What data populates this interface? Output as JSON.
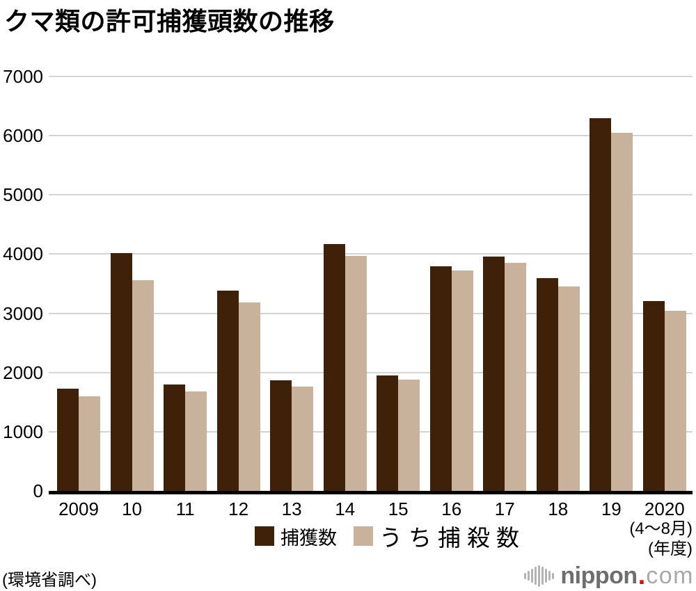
{
  "chart_data": {
    "type": "bar",
    "title": "クマ類の許可捕獲頭数の推移",
    "categories": [
      "2009",
      "10",
      "11",
      "12",
      "13",
      "14",
      "15",
      "16",
      "17",
      "18",
      "19",
      "2020"
    ],
    "series": [
      {
        "name": "捕獲数",
        "color": "#3e2108",
        "values": [
          1728,
          4020,
          1803,
          3379,
          1866,
          4167,
          1954,
          3791,
          3959,
          3598,
          6297,
          3212
        ]
      },
      {
        "name": "うち捕殺数",
        "color": "#c8b29b",
        "values": [
          1602,
          3562,
          1676,
          3188,
          1766,
          3969,
          1876,
          3721,
          3852,
          3459,
          6045,
          3043
        ]
      }
    ],
    "xlabel": "",
    "ylabel": "",
    "ylim": [
      0,
      7000
    ],
    "yticks": [
      0,
      1000,
      2000,
      3000,
      4000,
      5000,
      6000,
      7000
    ],
    "grid": true,
    "legend_position": "bottom",
    "x_axis_note_lines": [
      "(4〜8月)",
      "(年度)"
    ],
    "source": "(環境省調べ)"
  },
  "logo": {
    "brand": "nippon",
    "dot": ".",
    "tld": "com",
    "icon": "soundwave-icon",
    "dot_color": "#e60012"
  },
  "colors": {
    "bar_dark": "#3e2108",
    "bar_light": "#c8b29b",
    "gridline": "#d4d4d4",
    "axis": "#000000",
    "logo_text": "#6e6e6e",
    "logo_tld": "#a8a8a8"
  }
}
